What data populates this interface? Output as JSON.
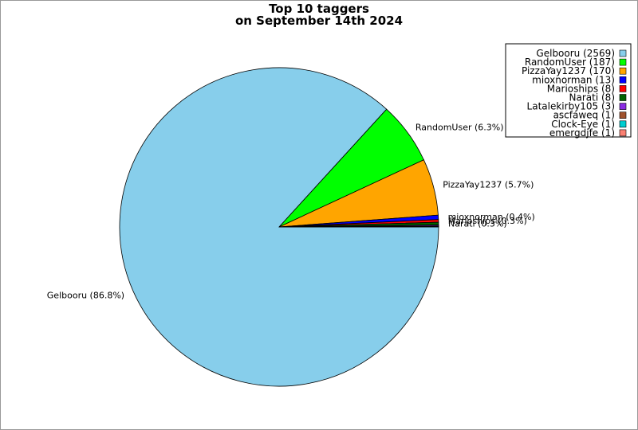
{
  "chart_data": {
    "type": "pie",
    "title": "Top 10 taggers",
    "subtitle": "on September 14th 2024",
    "legend_position": "top-right",
    "slices": [
      {
        "name": "Gelbooru",
        "value": 2569,
        "percent_label": "Gelbooru (86.8%)",
        "legend_label": "Gelbooru (2569)",
        "color": "#87CEEB"
      },
      {
        "name": "RandomUser",
        "value": 187,
        "percent_label": "RandomUser (6.3%)",
        "legend_label": "RandomUser (187)",
        "color": "#00FF00"
      },
      {
        "name": "PizzaYay1237",
        "value": 170,
        "percent_label": "PizzaYay1237 (5.7%)",
        "legend_label": "PizzaYay1237 (170)",
        "color": "#FFA500"
      },
      {
        "name": "mioxnorman",
        "value": 13,
        "percent_label": "mioxnorman (0.4%)",
        "legend_label": "mioxnorman (13)",
        "color": "#0000FF"
      },
      {
        "name": "Marioships",
        "value": 8,
        "percent_label": "Marioships (0.3%)",
        "legend_label": "Marioships (8)",
        "color": "#FF0000"
      },
      {
        "name": "Narati",
        "value": 8,
        "percent_label": "Narati (0.3%)",
        "legend_label": "Narati (8)",
        "color": "#006400"
      },
      {
        "name": "Latalekirby105",
        "value": 3,
        "percent_label": "",
        "legend_label": "Latalekirby105 (3)",
        "color": "#8A2BE2"
      },
      {
        "name": "ascfaweq",
        "value": 1,
        "percent_label": "",
        "legend_label": "ascfaweq (1)",
        "color": "#A0522D"
      },
      {
        "name": "Clock-Eye",
        "value": 1,
        "percent_label": "",
        "legend_label": "Clock-Eye (1)",
        "color": "#00CED1"
      },
      {
        "name": "emergdjfe",
        "value": 1,
        "percent_label": "",
        "legend_label": "emergdjfe (1)",
        "color": "#FA8072"
      }
    ]
  }
}
